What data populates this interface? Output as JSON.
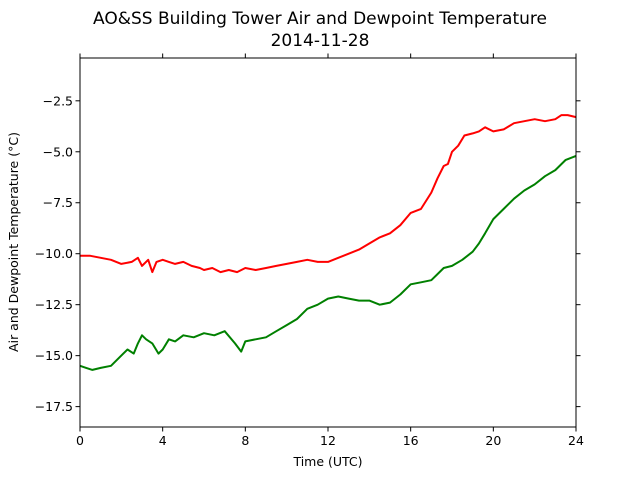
{
  "chart_data": {
    "type": "line",
    "title": "AO&SS Building Tower Air and Dewpoint Temperature",
    "subtitle": "2014-11-28",
    "xlabel": "Time (UTC)",
    "ylabel": "Air and Dewpoint Temperature (°C)",
    "xlim": [
      0,
      24
    ],
    "ylim": [
      -18.5,
      -0.4
    ],
    "xticks": [
      0,
      4,
      8,
      12,
      16,
      20,
      24
    ],
    "xtick_labels": [
      "0",
      "4",
      "8",
      "12",
      "16",
      "20",
      "24"
    ],
    "yticks": [
      -2.5,
      -5.0,
      -7.5,
      -10.0,
      -12.5,
      -15.0,
      -17.5
    ],
    "ytick_labels": [
      "−2.5",
      "−5.0",
      "−7.5",
      "−10.0",
      "−12.5",
      "−15.0",
      "−17.5"
    ],
    "grid": false,
    "series": [
      {
        "color": "#ff0000",
        "x": [
          0,
          0.5,
          1,
          1.5,
          2,
          2.5,
          2.8,
          3,
          3.3,
          3.5,
          3.7,
          4,
          4.3,
          4.6,
          5,
          5.4,
          5.8,
          6,
          6.4,
          6.8,
          7.2,
          7.6,
          8,
          8.5,
          9,
          9.5,
          10,
          10.5,
          11,
          11.5,
          12,
          12.5,
          13,
          13.5,
          14,
          14.5,
          15,
          15.5,
          16,
          16.5,
          17,
          17.3,
          17.6,
          17.8,
          18,
          18.3,
          18.6,
          19,
          19.3,
          19.6,
          20,
          20.5,
          21,
          21.5,
          22,
          22.5,
          23,
          23.3,
          23.6,
          24
        ],
        "y": [
          -10.1,
          -10.1,
          -10.2,
          -10.3,
          -10.5,
          -10.4,
          -10.2,
          -10.6,
          -10.3,
          -10.9,
          -10.4,
          -10.3,
          -10.4,
          -10.5,
          -10.4,
          -10.6,
          -10.7,
          -10.8,
          -10.7,
          -10.9,
          -10.8,
          -10.9,
          -10.7,
          -10.8,
          -10.7,
          -10.6,
          -10.5,
          -10.4,
          -10.3,
          -10.4,
          -10.4,
          -10.2,
          -10.0,
          -9.8,
          -9.5,
          -9.2,
          -9.0,
          -8.6,
          -8.0,
          -7.8,
          -7.0,
          -6.3,
          -5.7,
          -5.6,
          -5.0,
          -4.7,
          -4.2,
          -4.1,
          -4.0,
          -3.8,
          -4.0,
          -3.9,
          -3.6,
          -3.5,
          -3.4,
          -3.5,
          -3.4,
          -3.2,
          -3.2,
          -3.3
        ]
      },
      {
        "color": "#008000",
        "x": [
          0,
          0.3,
          0.6,
          1,
          1.5,
          2,
          2.3,
          2.6,
          2.8,
          3,
          3.2,
          3.5,
          3.8,
          4,
          4.3,
          4.6,
          5,
          5.5,
          6,
          6.5,
          7,
          7.5,
          7.8,
          8,
          8.5,
          9,
          9.5,
          10,
          10.5,
          11,
          11.5,
          12,
          12.5,
          13,
          13.5,
          14,
          14.5,
          15,
          15.5,
          16,
          16.5,
          17,
          17.3,
          17.6,
          18,
          18.5,
          19,
          19.3,
          19.6,
          20,
          20.5,
          21,
          21.5,
          22,
          22.5,
          23,
          23.5,
          24
        ],
        "y": [
          -15.5,
          -15.6,
          -15.7,
          -15.6,
          -15.5,
          -15.0,
          -14.7,
          -14.9,
          -14.4,
          -14.0,
          -14.2,
          -14.4,
          -14.9,
          -14.7,
          -14.2,
          -14.3,
          -14.0,
          -14.1,
          -13.9,
          -14.0,
          -13.8,
          -14.4,
          -14.8,
          -14.3,
          -14.2,
          -14.1,
          -13.8,
          -13.5,
          -13.2,
          -12.7,
          -12.5,
          -12.2,
          -12.1,
          -12.2,
          -12.3,
          -12.3,
          -12.5,
          -12.4,
          -12.0,
          -11.5,
          -11.4,
          -11.3,
          -11.0,
          -10.7,
          -10.6,
          -10.3,
          -9.9,
          -9.5,
          -9.0,
          -8.3,
          -7.8,
          -7.3,
          -6.9,
          -6.6,
          -6.2,
          -5.9,
          -5.4,
          -5.2
        ]
      }
    ]
  }
}
